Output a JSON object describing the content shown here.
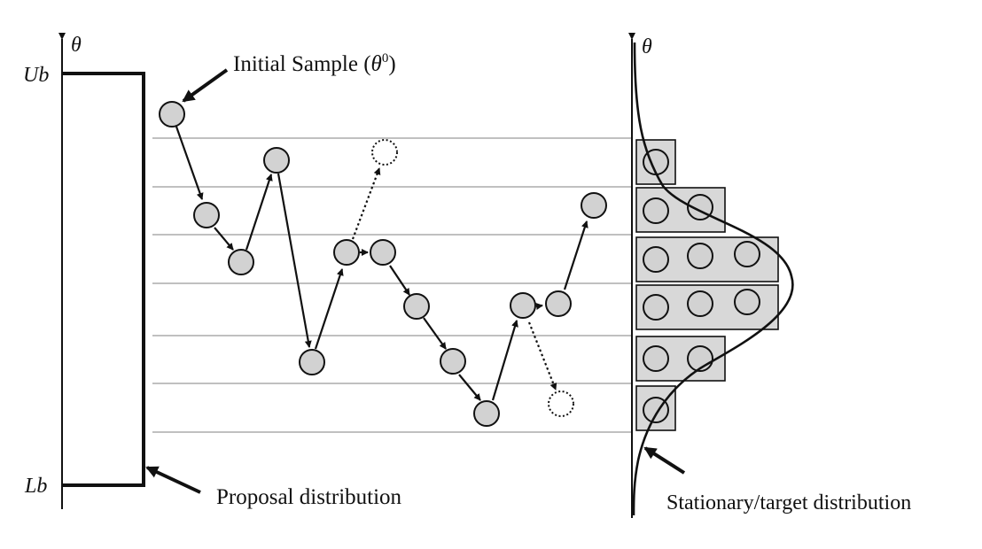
{
  "left_axis": {
    "symbol": "θ",
    "upper_bound": "Ub",
    "lower_bound": "Lb"
  },
  "right_axis": {
    "symbol": "θ"
  },
  "labels": {
    "initial_sample_text": "Initial Sample (",
    "initial_sample_theta": "θ",
    "initial_sample_sup": "0",
    "initial_sample_close": ")",
    "proposal": "Proposal distribution",
    "target": "Stationary/target distribution"
  }
}
